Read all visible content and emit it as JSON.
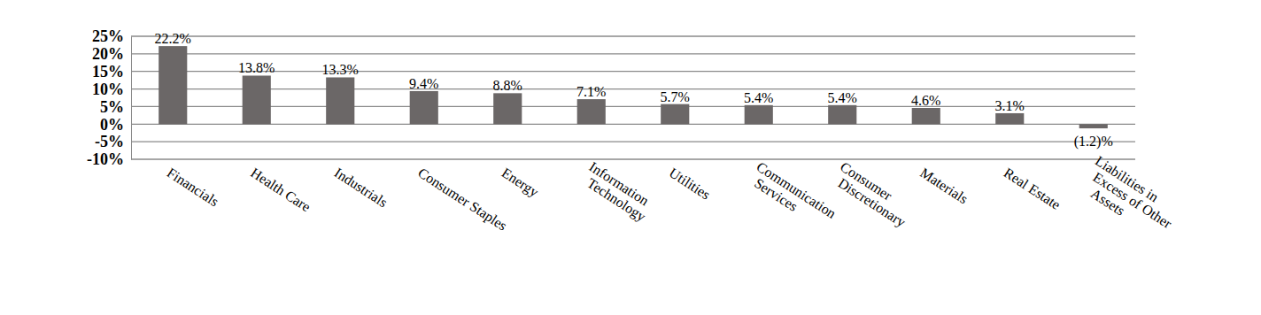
{
  "chart_data": {
    "type": "bar",
    "categories": [
      "Financials",
      "Health Care",
      "Industrials",
      "Consumer Staples",
      "Energy",
      "Information\nTechnology",
      "Utilities",
      "Communication\nServices",
      "Consumer\nDiscretionary",
      "Materials",
      "Real Estate",
      "Liabilities in\nExcess of Other\nAssets"
    ],
    "values": [
      22.2,
      13.8,
      13.3,
      9.4,
      8.8,
      7.1,
      5.7,
      5.4,
      5.4,
      4.6,
      3.1,
      -1.2
    ],
    "value_labels": [
      "22.2%",
      "13.8%",
      "13.3%",
      "9.4%",
      "8.8%",
      "7.1%",
      "5.7%",
      "5.4%",
      "5.4%",
      "4.6%",
      "3.1%",
      "(1.2)%"
    ],
    "color": "#6b6767",
    "ylim": [
      -10,
      25
    ],
    "yticks": [
      {
        "value": 25,
        "label": "25%"
      },
      {
        "value": 20,
        "label": "20%"
      },
      {
        "value": 15,
        "label": "15%"
      },
      {
        "value": 10,
        "label": "10%"
      },
      {
        "value": 5,
        "label": "5%"
      },
      {
        "value": 0,
        "label": "0%"
      },
      {
        "value": -5,
        "label": "-5%"
      },
      {
        "value": -10,
        "label": "-10%"
      }
    ],
    "grid": true,
    "data_labels": true
  }
}
